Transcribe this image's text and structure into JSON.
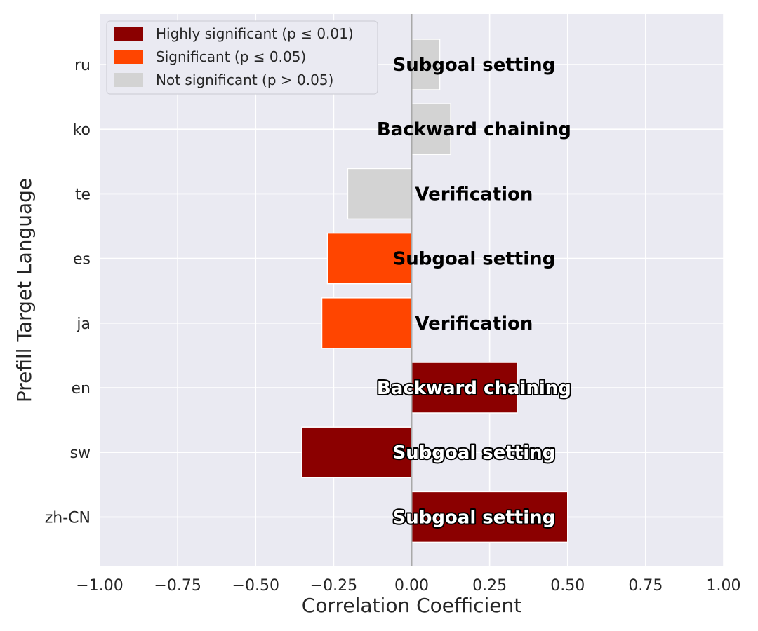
{
  "chart_data": {
    "type": "bar",
    "orientation": "horizontal",
    "xlabel": "Correlation Coefficient",
    "ylabel": "Prefill Target Language",
    "xlim": [
      -1.0,
      1.0
    ],
    "xticks": [
      "−1.00",
      "−0.75",
      "−0.50",
      "−0.25",
      "0.00",
      "0.25",
      "0.50",
      "0.75",
      "1.00"
    ],
    "xtick_values": [
      -1.0,
      -0.75,
      -0.5,
      -0.25,
      0.0,
      0.25,
      0.5,
      0.75,
      1.0
    ],
    "grid": true,
    "legend_position": "top-left",
    "legend": [
      {
        "label": "Highly significant (p ≤ 0.01)",
        "color": "#8b0000"
      },
      {
        "label": "Significant (p ≤ 0.05)",
        "color": "#ff4500"
      },
      {
        "label": "Not significant (p > 0.05)",
        "color": "#d3d3d3"
      }
    ],
    "categories": [
      "ru",
      "ko",
      "te",
      "es",
      "ja",
      "en",
      "sw",
      "zh-CN"
    ],
    "values": [
      0.09,
      0.125,
      -0.205,
      -0.27,
      -0.288,
      0.338,
      -0.352,
      0.5
    ],
    "significance": [
      "not",
      "not",
      "not",
      "sig",
      "sig",
      "high",
      "high",
      "high"
    ],
    "bar_labels": [
      "Subgoal setting",
      "Backward chaining",
      "Verification",
      "Subgoal setting",
      "Verification",
      "Backward chaining",
      "Subgoal setting",
      "Subgoal setting"
    ],
    "colors": {
      "high": "#8b0000",
      "sig": "#ff4500",
      "not": "#d3d3d3",
      "background": "#eaeaf2",
      "grid": "#ffffff",
      "zero_line": "#a9a9a9"
    }
  }
}
